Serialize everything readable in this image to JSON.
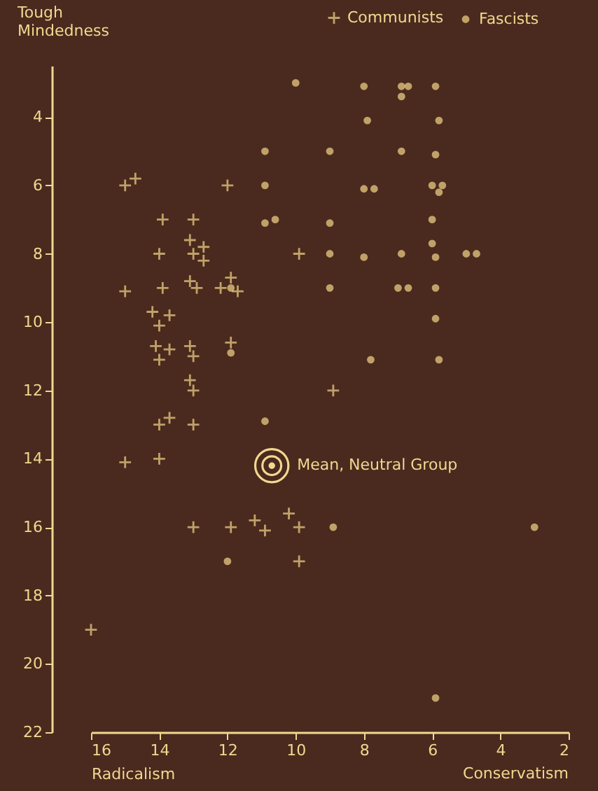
{
  "chart_data": {
    "type": "scatter",
    "xlabel": "Radicalism",
    "ylabel": "Tough Mindedness",
    "xlim": [
      16,
      2
    ],
    "xticks": [
      16,
      14,
      12,
      10,
      8,
      6,
      4,
      2
    ],
    "ylim": [
      22,
      2.5
    ],
    "yticks": [
      4,
      6,
      8,
      10,
      12,
      14,
      16,
      18,
      20,
      22
    ],
    "grid": false,
    "legend": "top right",
    "annotations": [
      {
        "text": "Mean, Neutral Group",
        "x": 10.7,
        "y": 14.2
      },
      "Conservatism"
    ],
    "series": [
      {
        "name": "Communists",
        "color": "#f3d58a",
        "marker": "cross",
        "x": [
          14.7,
          15.0,
          12.0,
          13.9,
          13.0,
          13.1,
          12.7,
          14.0,
          13.0,
          12.7,
          9.9,
          13.1,
          11.9,
          15.0,
          13.9,
          12.9,
          12.2,
          11.7,
          14.2,
          13.7,
          14.0,
          14.1,
          13.7,
          14.0,
          13.1,
          13.0,
          11.9,
          13.1,
          13.0,
          8.9,
          14.0,
          13.7,
          13.0,
          15.0,
          14.0,
          13.0,
          11.9,
          11.2,
          10.9,
          10.2,
          9.9,
          9.9,
          16.0
        ],
        "values": [
          5.8,
          6.0,
          6.0,
          7.0,
          7.0,
          7.6,
          7.8,
          8.0,
          8.0,
          8.2,
          8.0,
          8.8,
          8.7,
          9.1,
          9.0,
          9.0,
          9.0,
          9.1,
          9.7,
          9.8,
          10.1,
          10.7,
          10.8,
          11.1,
          10.7,
          11.0,
          10.6,
          11.7,
          12.0,
          12.0,
          13.0,
          12.8,
          13.0,
          14.1,
          14.0,
          16.0,
          16.0,
          15.8,
          16.1,
          15.6,
          16.0,
          17.0,
          19.0
        ]
      },
      {
        "name": "Fascists",
        "color": "#f3d58a",
        "marker": "circle",
        "x": [
          10.0,
          8.0,
          6.9,
          6.7,
          6.9,
          5.9,
          7.9,
          5.8,
          10.9,
          9.0,
          6.9,
          5.9,
          10.9,
          8.0,
          7.7,
          6.0,
          5.7,
          5.8,
          10.9,
          10.6,
          9.0,
          6.0,
          6.0,
          9.0,
          8.0,
          6.9,
          5.9,
          5.0,
          4.7,
          9.0,
          7.0,
          6.7,
          5.9,
          5.9,
          7.8,
          5.8,
          11.9,
          11.9,
          10.9,
          8.9,
          3.0,
          12.0,
          5.9
        ],
        "values": [
          3.0,
          3.1,
          3.1,
          3.1,
          3.4,
          3.1,
          4.1,
          4.1,
          5.0,
          5.0,
          5.0,
          5.1,
          6.0,
          6.1,
          6.1,
          6.0,
          6.0,
          6.2,
          7.1,
          7.0,
          7.1,
          7.0,
          7.7,
          8.0,
          8.1,
          8.0,
          8.1,
          8.0,
          8.0,
          9.0,
          9.0,
          9.0,
          9.0,
          9.9,
          11.1,
          11.1,
          9.0,
          10.9,
          12.9,
          16.0,
          16.0,
          17.0,
          21.0
        ]
      }
    ]
  }
}
